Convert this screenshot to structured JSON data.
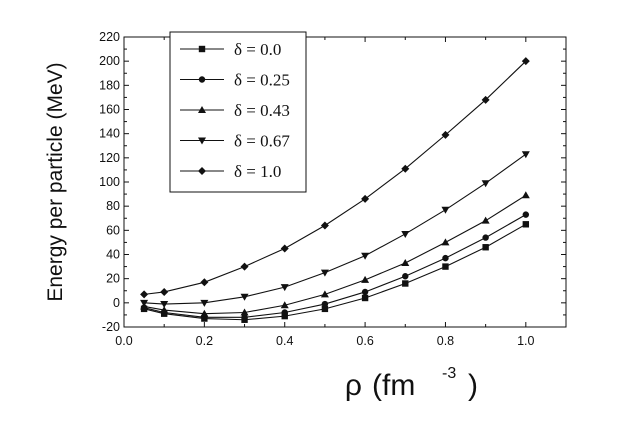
{
  "chart_data": {
    "type": "line",
    "title": "",
    "xlabel": "ρ",
    "xlabel_unit": "(fm",
    "xlabel_exponent": "-3",
    "xlabel_close": ")",
    "ylabel": "Energy per particle (MeV)",
    "xlim": [
      0.0,
      1.1
    ],
    "ylim": [
      -20,
      220
    ],
    "x_ticks": [
      "0.0",
      "0.2",
      "0.4",
      "0.6",
      "0.8",
      "1.0"
    ],
    "y_ticks": [
      "-20",
      "0",
      "20",
      "40",
      "60",
      "80",
      "100",
      "120",
      "140",
      "160",
      "180",
      "200",
      "220"
    ],
    "grid": false,
    "legend_position": "top-left",
    "x": [
      0.05,
      0.1,
      0.2,
      0.3,
      0.4,
      0.5,
      0.6,
      0.7,
      0.8,
      0.9,
      1.0
    ],
    "series": [
      {
        "name": "δ = 0.0",
        "marker": "square",
        "values": [
          -5,
          -9,
          -13,
          -14,
          -11,
          -5,
          4,
          16,
          30,
          46,
          65
        ]
      },
      {
        "name": "δ = 0.25",
        "marker": "circle",
        "values": [
          -4,
          -8,
          -12,
          -12,
          -8,
          -1,
          9,
          22,
          37,
          54,
          73
        ]
      },
      {
        "name": "δ = 0.43",
        "marker": "triangle-up",
        "values": [
          -3,
          -6,
          -9,
          -8,
          -2,
          7,
          19,
          33,
          50,
          68,
          89
        ]
      },
      {
        "name": "δ = 0.67",
        "marker": "triangle-down",
        "values": [
          0,
          -1,
          0,
          5,
          13,
          25,
          39,
          57,
          77,
          99,
          123
        ]
      },
      {
        "name": "δ = 1.0",
        "marker": "diamond",
        "values": [
          7,
          9,
          17,
          30,
          45,
          64,
          86,
          111,
          139,
          168,
          200
        ]
      }
    ]
  }
}
